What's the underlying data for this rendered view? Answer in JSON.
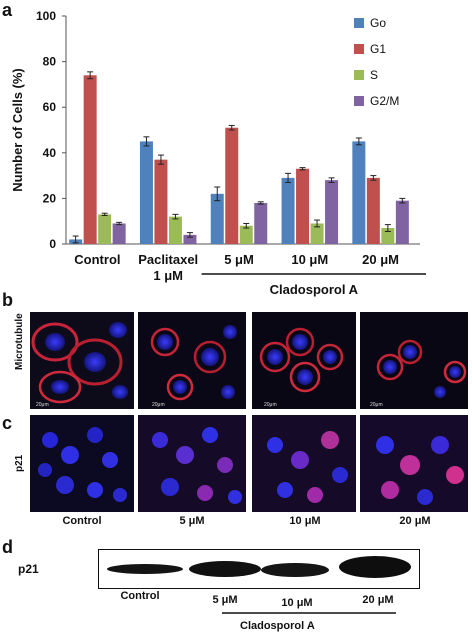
{
  "panels": {
    "a": "a",
    "b": "b",
    "c": "c",
    "d": "d"
  },
  "chart_data": {
    "type": "bar",
    "ylabel": "Number of Cells (%)",
    "ylim": [
      0,
      100
    ],
    "yticks": [
      "0",
      "20",
      "40",
      "60",
      "80",
      "100"
    ],
    "categories": [
      "Control",
      "Paclitaxel 1 μM",
      "5 μM",
      "10 μM",
      "20 μM"
    ],
    "category_lines": [
      [
        "Control"
      ],
      [
        "Paclitaxel",
        "1 μM"
      ],
      [
        "5 μM"
      ],
      [
        "10 μM"
      ],
      [
        "20 μM"
      ]
    ],
    "group_label": "Cladosporol A",
    "series": [
      {
        "name": "Go",
        "color": "#4f81bd",
        "values": [
          2,
          45,
          22,
          29,
          45
        ],
        "errors": [
          1.5,
          2,
          3,
          2,
          1.5
        ]
      },
      {
        "name": "G1",
        "color": "#c0504d",
        "values": [
          74,
          37,
          51,
          33,
          29
        ],
        "errors": [
          1.5,
          2,
          1,
          0.5,
          1
        ]
      },
      {
        "name": "S",
        "color": "#9bbb59",
        "values": [
          13,
          12,
          8,
          9,
          7
        ],
        "errors": [
          0.5,
          1,
          1,
          1.5,
          1.5
        ]
      },
      {
        "name": "G2/M",
        "color": "#8064a2",
        "values": [
          9,
          4,
          18,
          28,
          19
        ],
        "errors": [
          0.5,
          1,
          0.5,
          1,
          1
        ]
      }
    ],
    "legend_position": "top-right"
  },
  "micro_b_label": "Microtubule",
  "micro_c_label": "p21",
  "scalebar": "20μm",
  "micro_columns": [
    "Control",
    "5 μM",
    "10 μM",
    "20 μM"
  ],
  "blot": {
    "label": "p21",
    "lanes": [
      "Control",
      "5 μM",
      "10 μM",
      "20 μM"
    ],
    "group_label": "Cladosporol A"
  }
}
